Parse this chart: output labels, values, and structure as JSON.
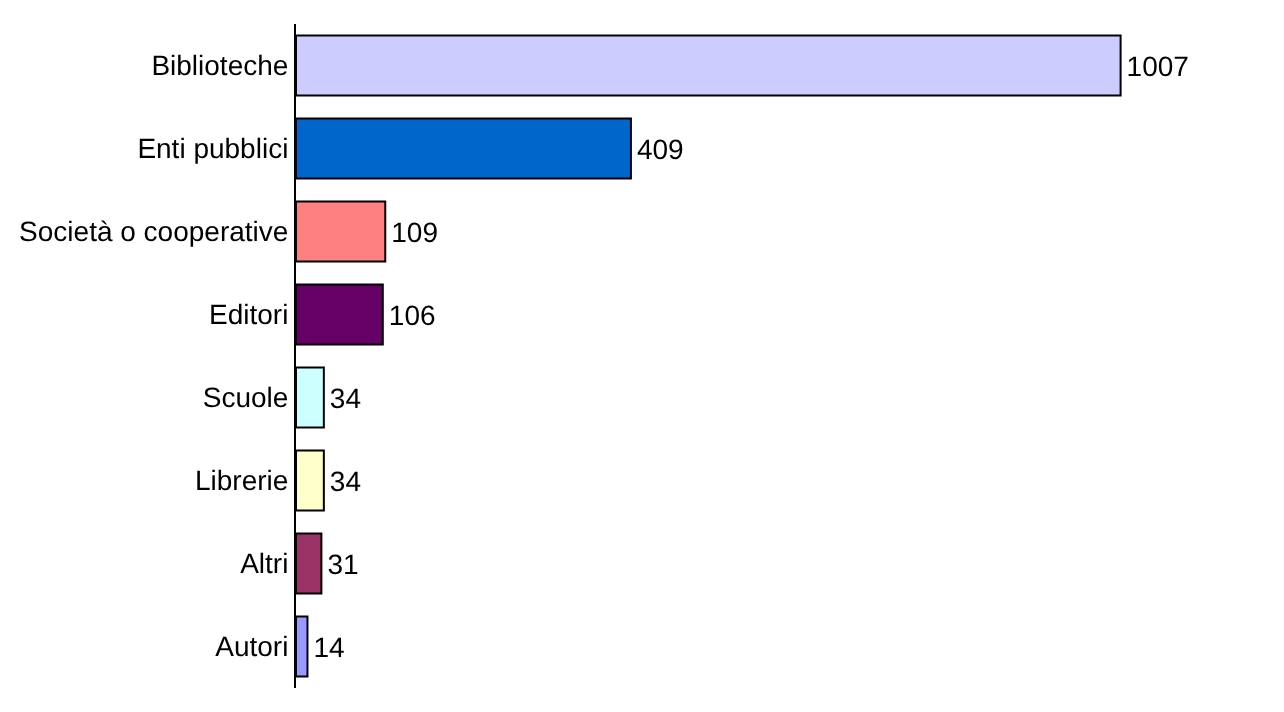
{
  "chart_data": {
    "type": "bar",
    "orientation": "horizontal",
    "categories": [
      "Biblioteche",
      "Enti pubblici",
      "Società o cooperative",
      "Editori",
      "Scuole",
      "Librerie",
      "Altri",
      "Autori"
    ],
    "values": [
      1007,
      409,
      109,
      106,
      34,
      34,
      31,
      14
    ],
    "colors": [
      "#ccccff",
      "#0066cc",
      "#ff8080",
      "#660066",
      "#ccffff",
      "#ffffcc",
      "#993366",
      "#9999ff"
    ],
    "data_labels": true
  }
}
